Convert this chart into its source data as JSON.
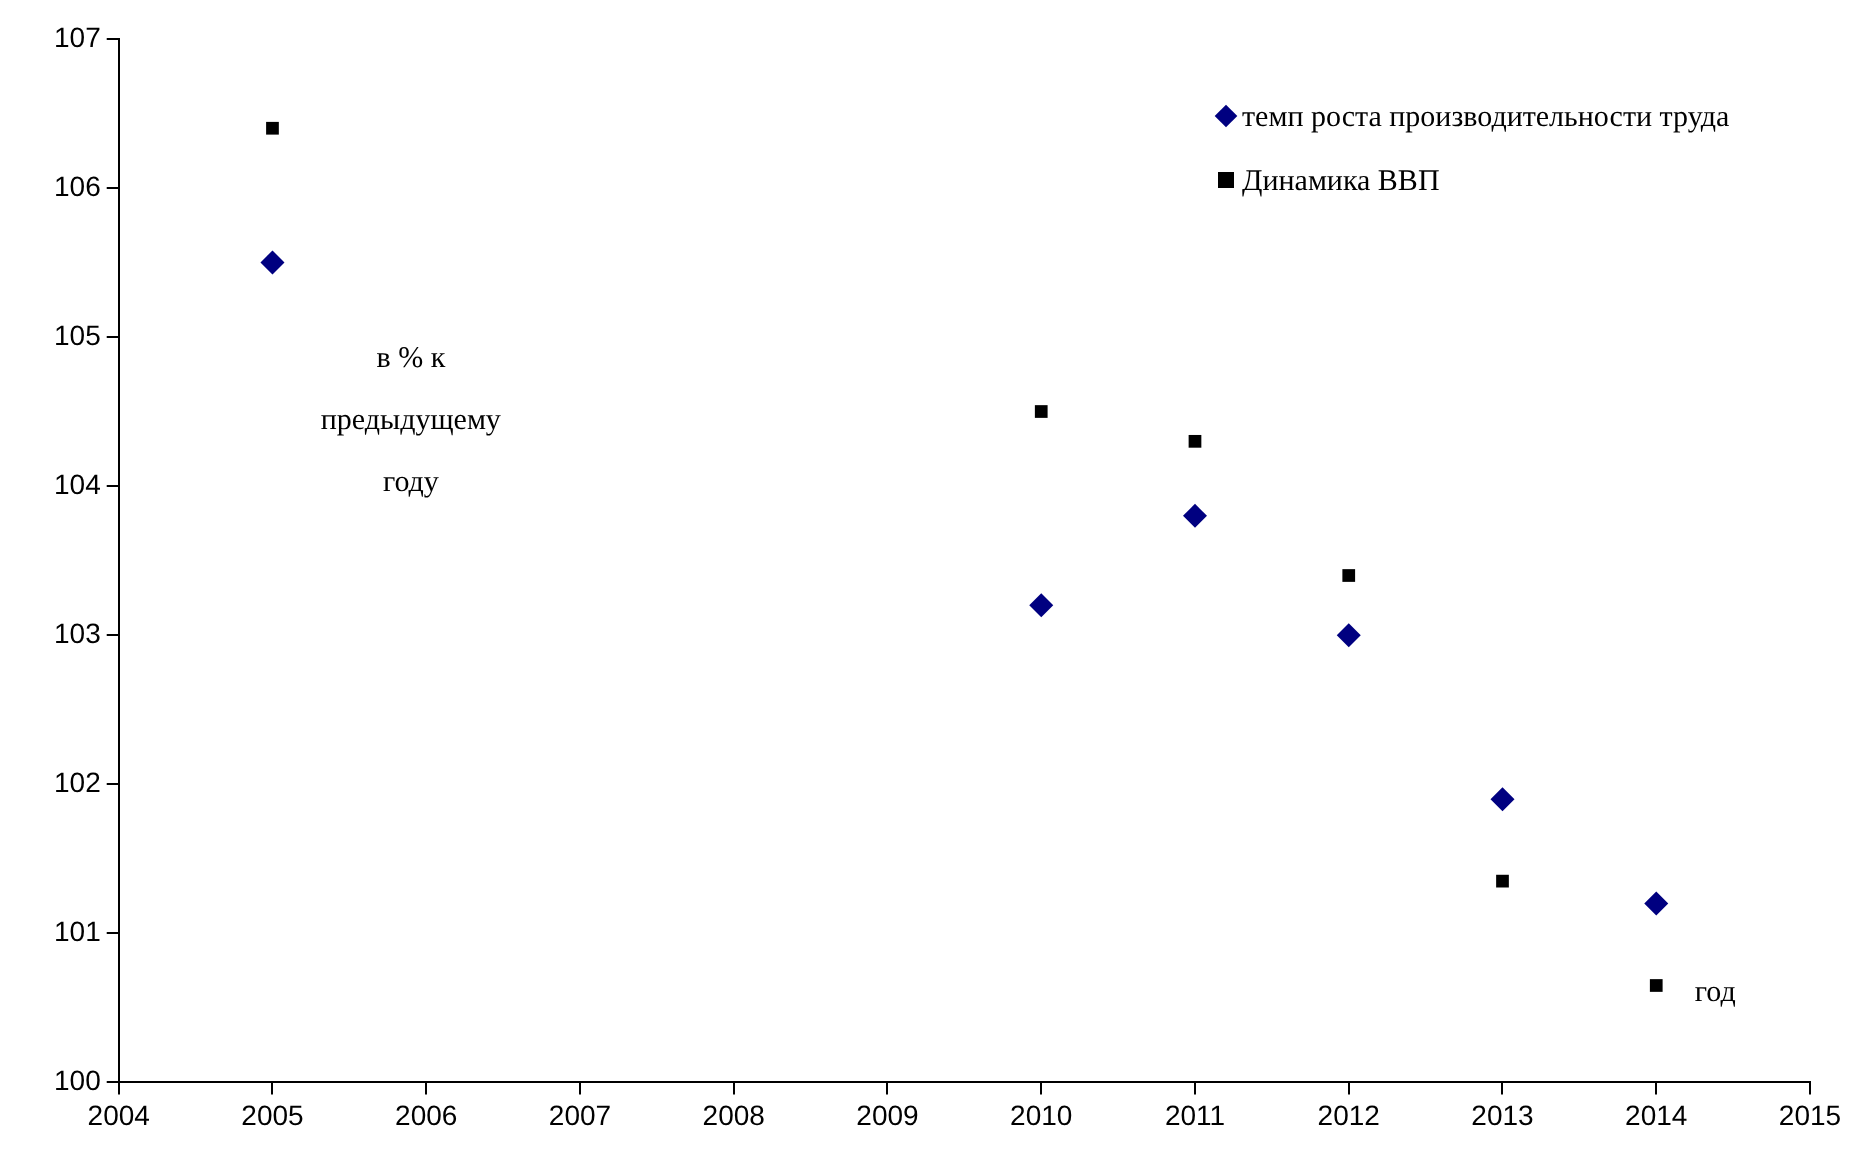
{
  "chart_data": {
    "type": "scatter",
    "xlabel": "год",
    "ylabel": "в % к предыдущему году",
    "x": [
      2005,
      2010,
      2011,
      2012,
      2013,
      2014
    ],
    "series": [
      {
        "name": "темп роста производительности труда",
        "color": "#000080",
        "marker": "diamond",
        "values": [
          105.5,
          103.2,
          103.8,
          103.0,
          101.9,
          101.2
        ]
      },
      {
        "name": "Динамика ВВП",
        "color": "#000000",
        "marker": "square",
        "values": [
          106.4,
          104.5,
          104.3,
          103.4,
          101.35,
          100.65
        ]
      }
    ],
    "xlim": [
      2004,
      2015
    ],
    "xticks": [
      2004,
      2005,
      2006,
      2007,
      2008,
      2009,
      2010,
      2011,
      2012,
      2013,
      2014,
      2015
    ],
    "ylim": [
      100,
      107
    ],
    "yticks": [
      100,
      101,
      102,
      103,
      104,
      105,
      106,
      107
    ],
    "grid": false,
    "legend": "top right"
  }
}
